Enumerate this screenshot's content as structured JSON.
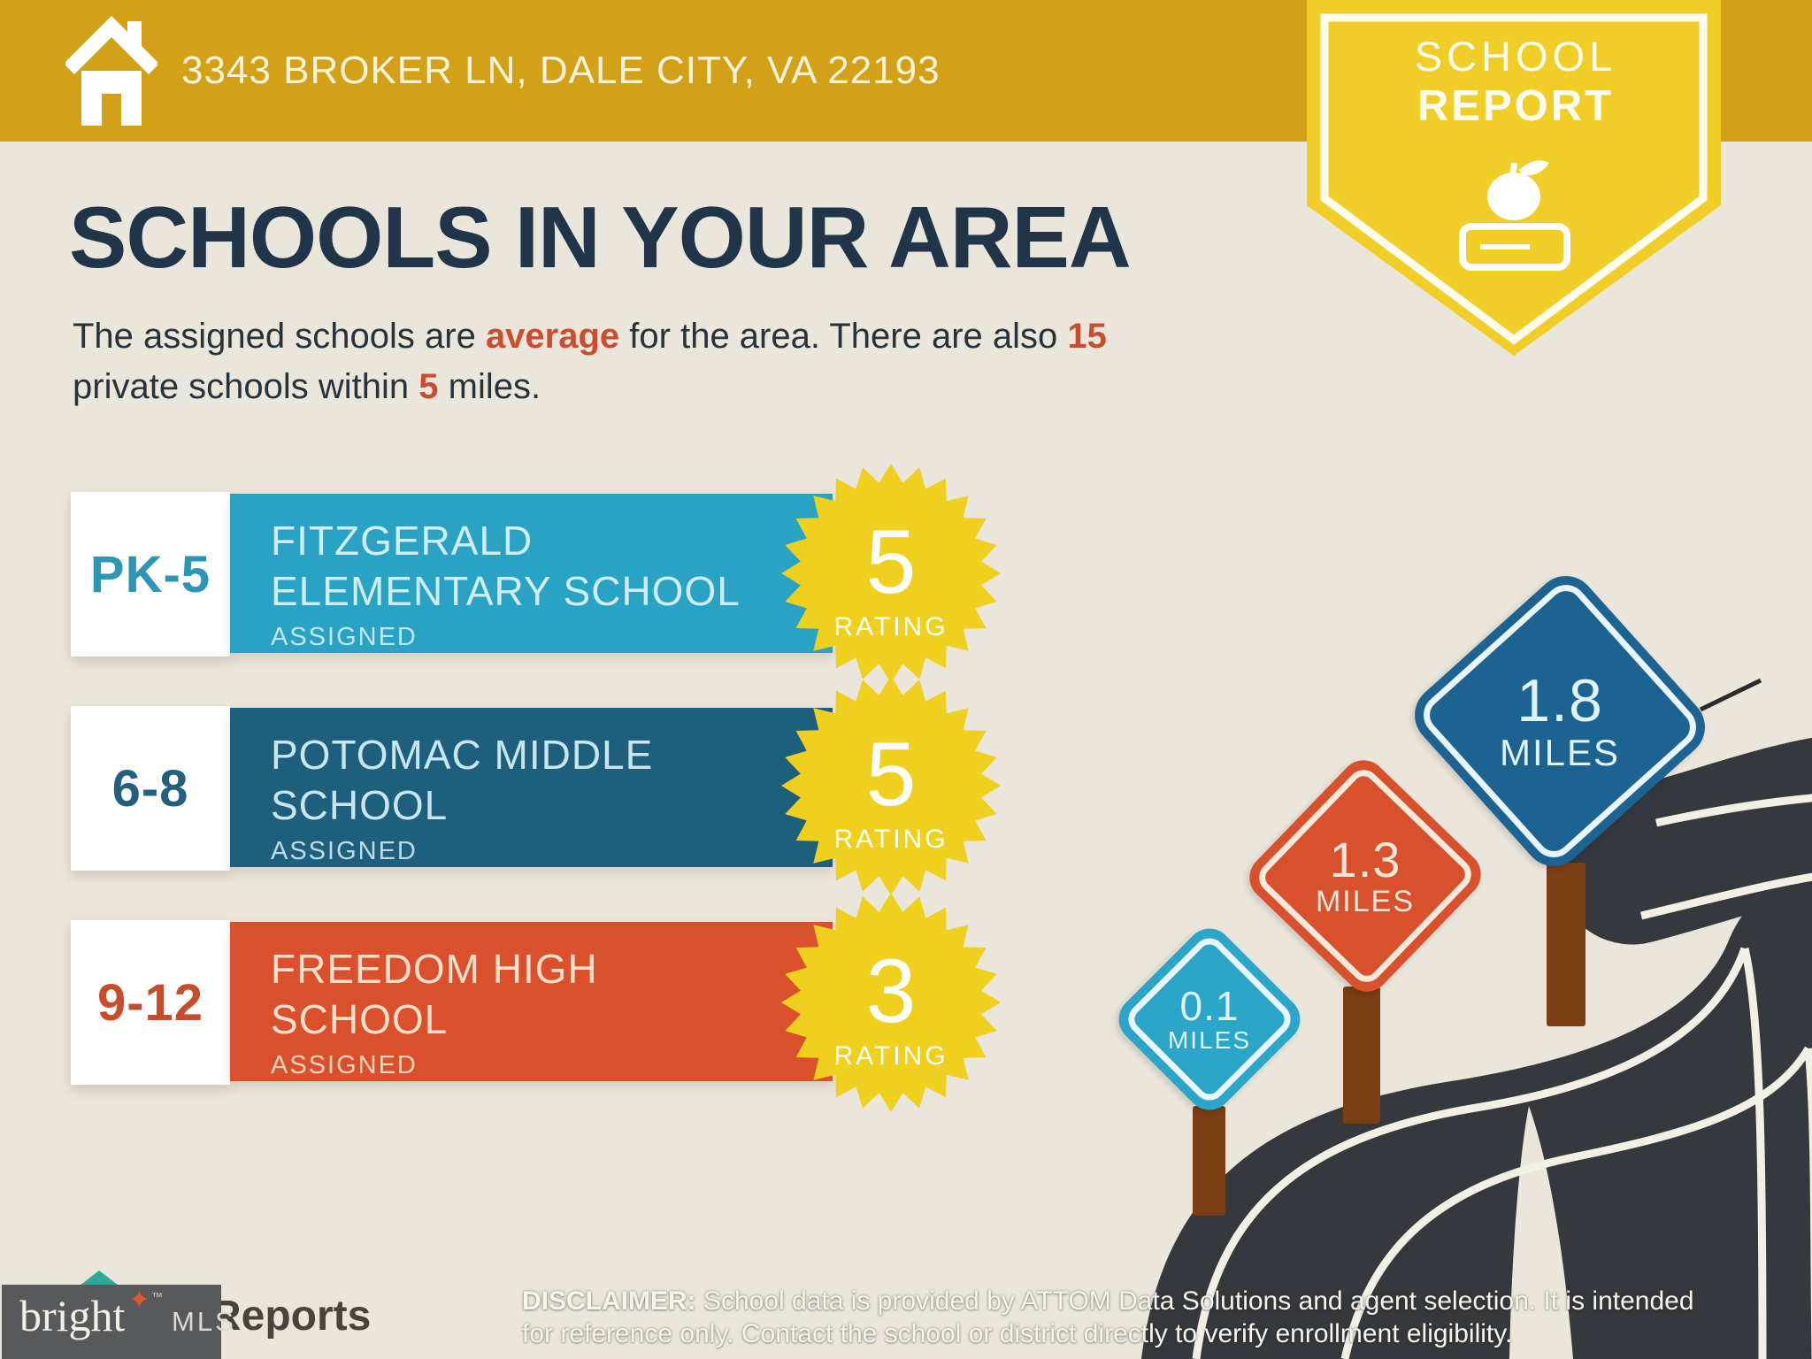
{
  "header": {
    "address": "3343 BROKER LN, DALE CITY, VA 22193",
    "badge": {
      "line1": "SCHOOL",
      "line2": "REPORT",
      "icons": [
        "apple-icon",
        "book-icon"
      ]
    }
  },
  "title": "SCHOOLS IN YOUR AREA",
  "subtitle": {
    "line1_pre": "The assigned schools are ",
    "line1_accent1": "average",
    "line1_mid": " for the area. There are also ",
    "line1_accent2": "15",
    "line2_pre": "private schools within ",
    "line2_accent": "5",
    "line2_post": " miles."
  },
  "schools": [
    {
      "grades": "PK-5",
      "name_line1": "FITZGERALD",
      "name_line2": "ELEMENTARY SCHOOL",
      "tag": "ASSIGNED",
      "rating": "5",
      "rating_label": "RATING",
      "bar_color": "#29A2C4",
      "grade_color": "#2E96B5",
      "text_color": "#CFEDF5"
    },
    {
      "grades": "6-8",
      "name_line1": "POTOMAC MIDDLE",
      "name_line2": "SCHOOL",
      "tag": "ASSIGNED",
      "rating": "5",
      "rating_label": "RATING",
      "bar_color": "#1F5F7E",
      "grade_color": "#23607E",
      "text_color": "#C9E6F0"
    },
    {
      "grades": "9-12",
      "name_line1": "FREEDOM HIGH",
      "name_line2": "SCHOOL",
      "tag": "ASSIGNED",
      "rating": "3",
      "rating_label": "RATING",
      "bar_color": "#DA4F2C",
      "grade_color": "#C74C28",
      "text_color": "#F6E0CC"
    }
  ],
  "signs": [
    {
      "value": "0.1",
      "label": "MILES",
      "color": "#2BA6C9"
    },
    {
      "value": "1.3",
      "label": "MILES",
      "color": "#D8502C"
    },
    {
      "value": "1.8",
      "label": "MILES",
      "color": "#1D6391"
    }
  ],
  "footer": {
    "brand_word": "bright",
    "brand_tm": "™",
    "brand_suffix": "MLS",
    "brand_star_icon": "sparkle-icon",
    "partner_logo_text": "Reports",
    "disclaimer_label": "DISCLAIMER:",
    "disclaimer_line1": " School data is provided by ATTOM Data Solutions and agent selection. It is intended",
    "disclaimer_line2": "for reference only. Contact the school or district directly to verify enrollment eligibility."
  },
  "colors": {
    "banner_gold": "#D2A117",
    "badge_yellow": "#F0CE27",
    "background": "#EBE6DB",
    "heading_navy": "#20344A",
    "accent_red": "#C94D2E",
    "starburst_yellow": "#EFD01E",
    "road_asphalt": "#35383C",
    "road_line": "#F2EFE5",
    "post_brown": "#7B3E15",
    "brand_box_gray": "#58595B"
  }
}
